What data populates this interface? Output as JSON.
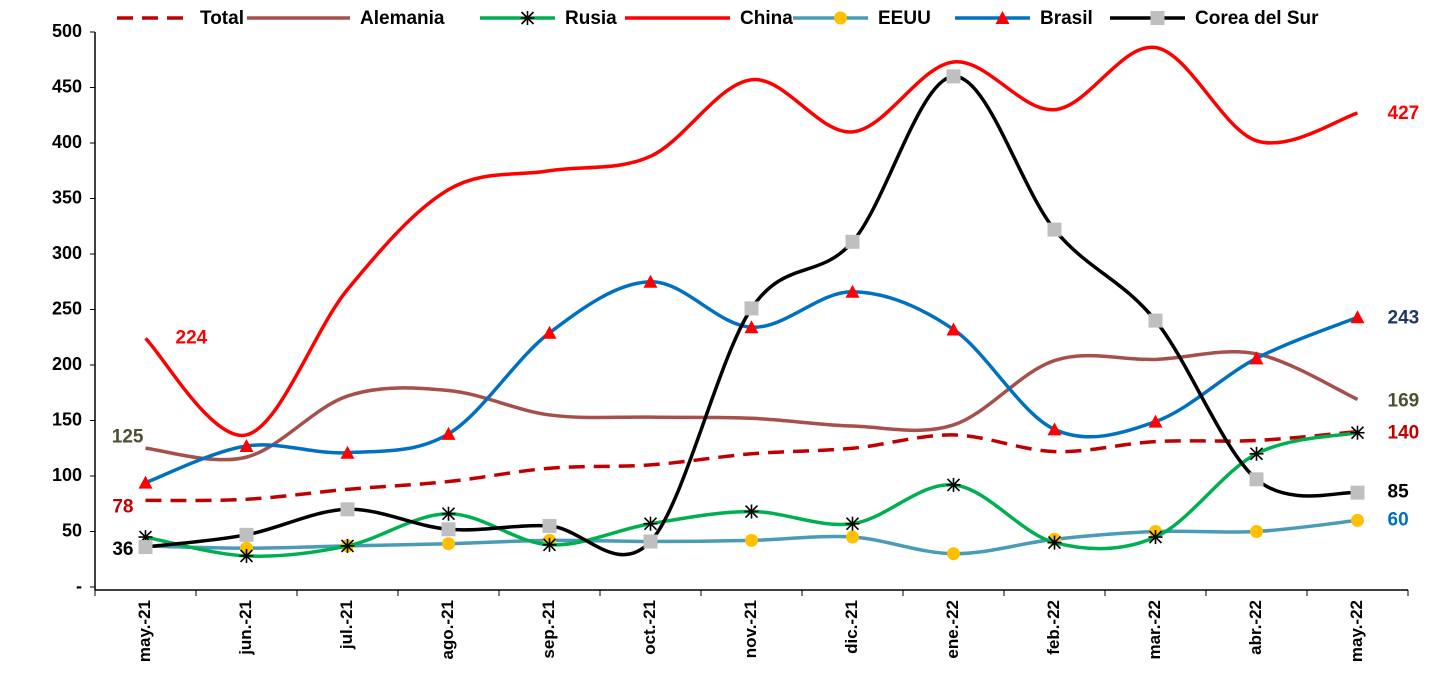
{
  "chart_data": {
    "type": "line",
    "categories": [
      "may.-21",
      "jun.-21",
      "jul.-21",
      "ago.-21",
      "sep.-21",
      "oct.-21",
      "nov.-21",
      "dic.-21",
      "ene.-22",
      "feb.-22",
      "mar.-22",
      "abr.-22",
      "may.-22"
    ],
    "ylim": [
      0,
      500
    ],
    "yticks": [
      {
        "value": 0,
        "label": "-"
      },
      50,
      100,
      150,
      200,
      250,
      300,
      350,
      400,
      450,
      500
    ],
    "series": [
      {
        "name": "Total",
        "color": "#c00000",
        "dash": true,
        "marker": "none",
        "values": [
          78,
          79,
          88,
          95,
          107,
          110,
          120,
          125,
          137,
          122,
          131,
          132,
          140
        ],
        "value_labels": [
          "78",
          null,
          null,
          null,
          null,
          null,
          null,
          null,
          null,
          null,
          null,
          null,
          "140"
        ],
        "label_color": "#c00000"
      },
      {
        "name": "Alemania",
        "color": "#a5504a",
        "marker": "none",
        "values": [
          125,
          117,
          172,
          177,
          155,
          153,
          152,
          145,
          146,
          204,
          205,
          210,
          169
        ],
        "value_labels": [
          "125",
          null,
          null,
          null,
          null,
          null,
          null,
          null,
          null,
          null,
          null,
          null,
          "169"
        ],
        "label_color": "#4f4f33"
      },
      {
        "name": "Rusia",
        "color": "#00b050",
        "marker": "asterisk",
        "values": [
          45,
          28,
          37,
          66,
          38,
          57,
          68,
          57,
          92,
          40,
          45,
          120,
          139
        ]
      },
      {
        "name": "China",
        "color": "#ff0000",
        "marker": "none",
        "values": [
          224,
          137,
          268,
          358,
          375,
          388,
          457,
          410,
          473,
          430,
          486,
          402,
          427
        ],
        "value_labels": [
          "224",
          null,
          null,
          null,
          null,
          null,
          null,
          null,
          null,
          null,
          null,
          null,
          "427"
        ],
        "label_color": "#ff0000"
      },
      {
        "name": "EEUU",
        "color": "#4a9bb5",
        "marker": "circle",
        "values": [
          37,
          35,
          37,
          39,
          42,
          41,
          42,
          45,
          30,
          43,
          50,
          50,
          60
        ],
        "value_labels": [
          null,
          null,
          null,
          null,
          null,
          null,
          null,
          null,
          null,
          null,
          null,
          null,
          "60"
        ],
        "label_color": "#0070c0"
      },
      {
        "name": "Brasil",
        "color": "#0070c0",
        "marker": "triangle",
        "values": [
          94,
          127,
          121,
          138,
          229,
          275,
          234,
          266,
          232,
          142,
          149,
          206,
          243
        ],
        "value_labels": [
          null,
          null,
          null,
          null,
          null,
          null,
          null,
          null,
          null,
          null,
          null,
          null,
          "243"
        ],
        "label_color": "#1f3864"
      },
      {
        "name": "Corea del Sur",
        "color": "#000000",
        "marker": "square",
        "values": [
          36,
          47,
          70,
          52,
          55,
          41,
          251,
          311,
          460,
          322,
          240,
          97,
          85
        ],
        "value_labels": [
          "36",
          null,
          null,
          null,
          null,
          null,
          null,
          null,
          null,
          null,
          null,
          null,
          "85"
        ],
        "label_color": "#000000"
      }
    ]
  }
}
